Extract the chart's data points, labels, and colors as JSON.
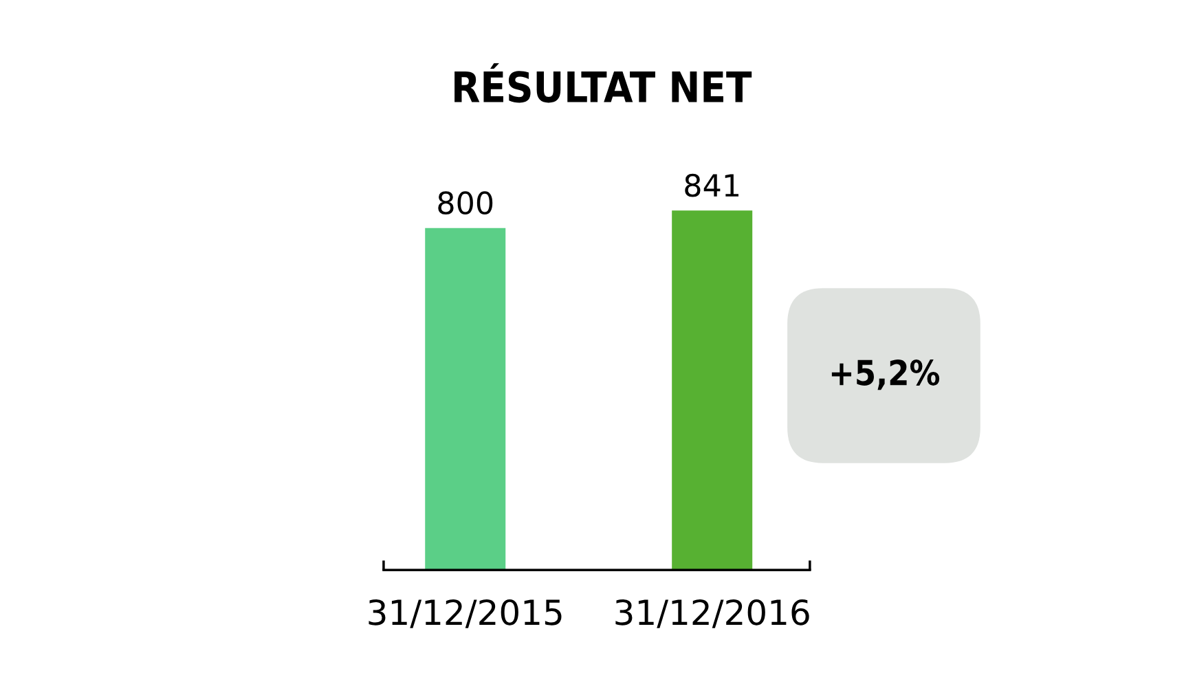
{
  "chart_data": {
    "type": "bar",
    "title": "RÉSULTAT NET",
    "categories": [
      "31/12/2015",
      "31/12/2016"
    ],
    "values": [
      800,
      841
    ],
    "colors": [
      "#5bcf87",
      "#57b132"
    ],
    "data_labels": true,
    "annotations": [
      "+5,2%"
    ],
    "grid": false,
    "legend": false
  }
}
